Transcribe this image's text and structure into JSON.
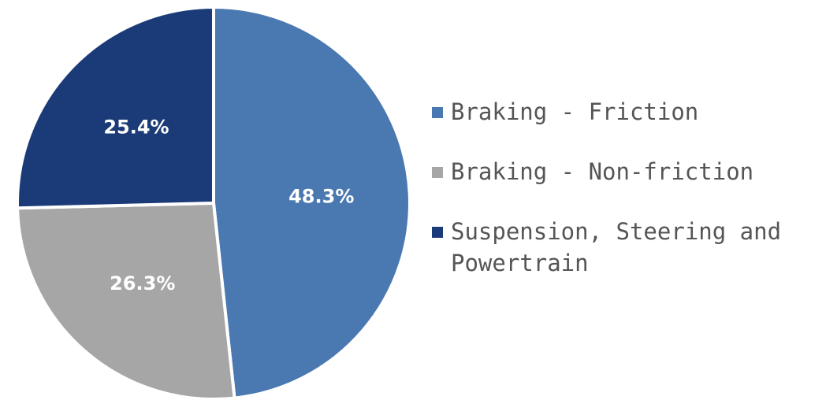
{
  "chart_data": {
    "type": "pie",
    "categories": [
      "Braking - Friction",
      "Braking - Non-friction",
      "Suspension, Steering and Powertrain"
    ],
    "values": [
      48.3,
      26.3,
      25.4
    ],
    "value_labels": [
      "48.3%",
      "26.3%",
      "25.4%"
    ],
    "colors": [
      "#4a78b0",
      "#a6a6a6",
      "#1b3b78"
    ],
    "legend": "right"
  }
}
